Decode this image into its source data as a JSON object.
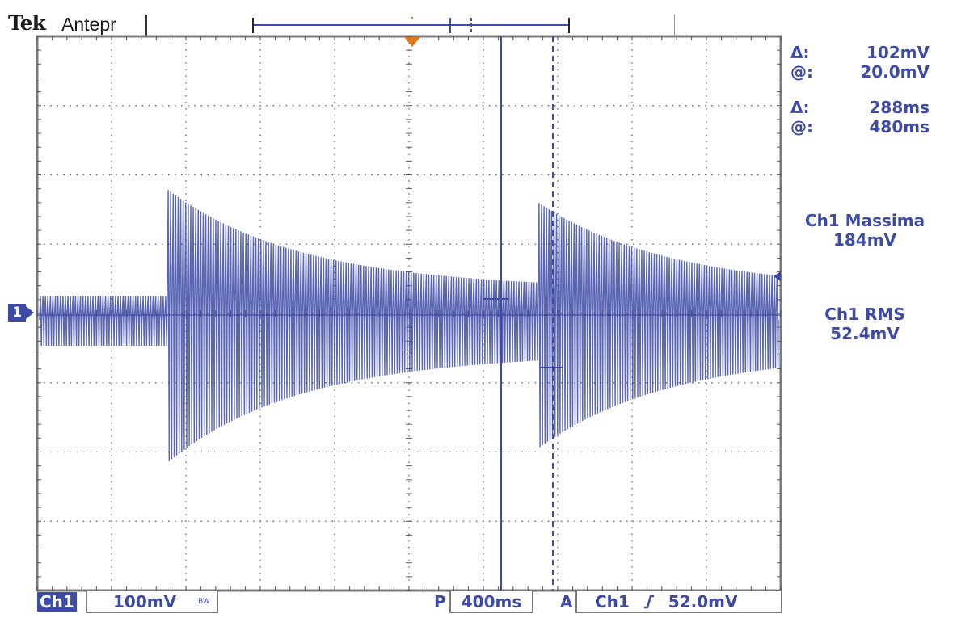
{
  "header": {
    "brand": "Tek",
    "acquisition_mode": "Antepr"
  },
  "cursor_readouts": {
    "voltage_delta_label": "Δ:",
    "voltage_delta_value": "102mV",
    "voltage_at_label": "@:",
    "voltage_at_value": "20.0mV",
    "time_delta_label": "Δ:",
    "time_delta_value": "288ms",
    "time_at_label": "@:",
    "time_at_value": "480ms"
  },
  "measurements": {
    "max_label": "Ch1 Massima",
    "max_value": "184mV",
    "rms_label": "Ch1 RMS",
    "rms_value": "52.4mV"
  },
  "channel_marker": "1",
  "status_bar": {
    "channel": "Ch1",
    "volts_per_div": "100mV",
    "bw_limit": "BW",
    "position_label": "P",
    "time_per_div": "400ms",
    "trigger_label": "A",
    "trigger_source": "Ch1",
    "trigger_slope_icon": "rising-edge-icon",
    "trigger_level": "52.0mV"
  },
  "colors": {
    "trace": "#3d4aa6",
    "grid_frame": "#7a7a7a",
    "trigger_marker": "#e0781e"
  }
}
